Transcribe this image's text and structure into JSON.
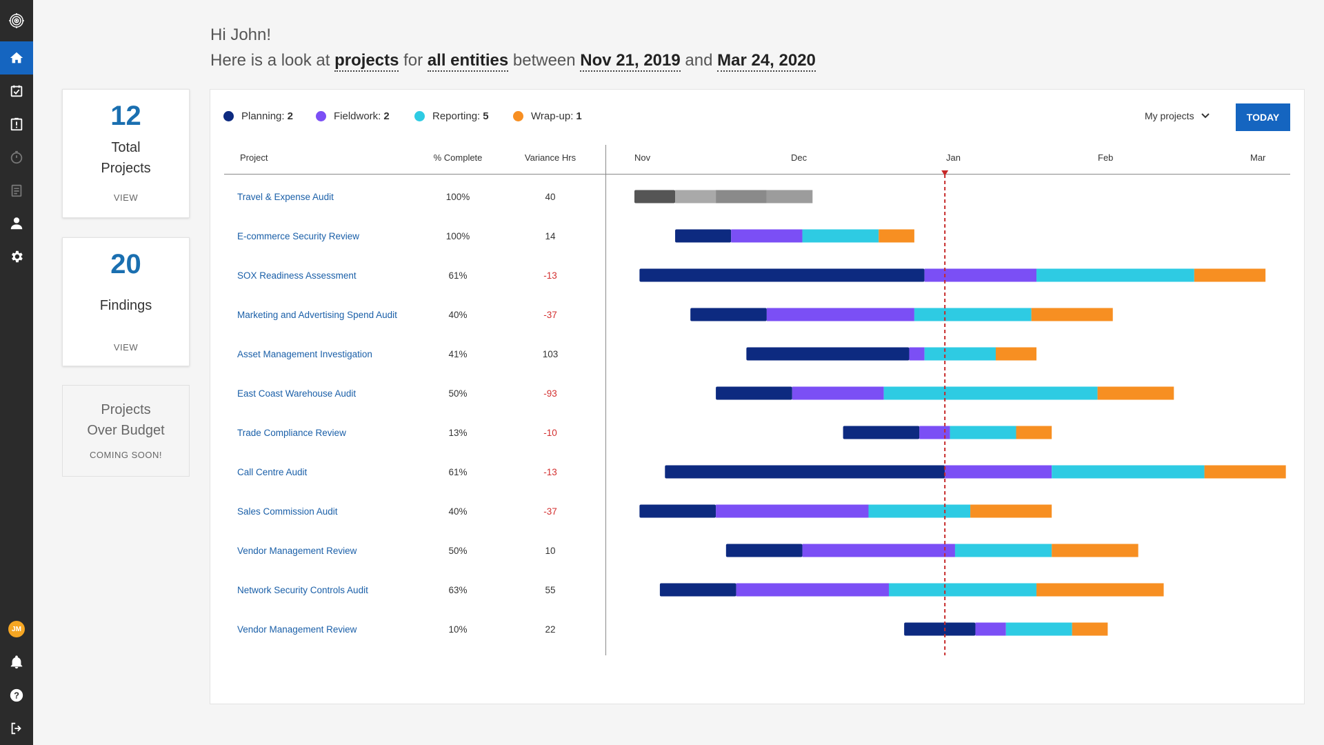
{
  "greeting": {
    "hello": "Hi John!",
    "line_prefix": "Here is a look at",
    "subject": "projects",
    "for_word": "for",
    "entities": "all entities",
    "between_word": "between",
    "start_date": "Nov 21, 2019",
    "and_word": "and",
    "end_date": "Mar 24, 2020"
  },
  "sidebar": {
    "avatar_initials": "JM",
    "icons": [
      "target-logo-icon",
      "home-icon",
      "checkbox-icon",
      "alert-clipboard-icon",
      "stopwatch-icon",
      "document-icon",
      "user-icon",
      "gear-icon",
      "bell-icon",
      "help-icon",
      "logout-icon"
    ]
  },
  "cards": {
    "total": {
      "count": "12",
      "label_line1": "Total",
      "label_line2": "Projects",
      "view": "VIEW"
    },
    "findings": {
      "count": "20",
      "label": "Findings",
      "view": "VIEW"
    },
    "budget": {
      "label_line1": "Projects",
      "label_line2": "Over Budget",
      "status": "COMING SOON!"
    }
  },
  "legend": [
    {
      "label": "Planning:",
      "count": "2",
      "color": "#0d2a80"
    },
    {
      "label": "Fieldwork:",
      "count": "2",
      "color": "#7b4ff5"
    },
    {
      "label": "Reporting:",
      "count": "5",
      "color": "#2ecbe3"
    },
    {
      "label": "Wrap-up:",
      "count": "1",
      "color": "#f78f22"
    }
  ],
  "filter": {
    "selected": "My projects"
  },
  "today_button": "TODAY",
  "columns": {
    "project": "Project",
    "complete": "% Complete",
    "variance": "Variance Hrs"
  },
  "months": [
    "Nov",
    "Dec",
    "Jan",
    "Feb",
    "Mar"
  ],
  "rows": [
    {
      "name": "Travel & Expense Audit",
      "complete": "100%",
      "variance": "40",
      "negative": false
    },
    {
      "name": "E-commerce Security Review",
      "complete": "100%",
      "variance": "14",
      "negative": false
    },
    {
      "name": "SOX Readiness Assessment",
      "complete": "61%",
      "variance": "-13",
      "negative": true
    },
    {
      "name": "Marketing and Advertising Spend Audit",
      "complete": "40%",
      "variance": "-37",
      "negative": true
    },
    {
      "name": "Asset Management Investigation",
      "complete": "41%",
      "variance": "103",
      "negative": false
    },
    {
      "name": "East Coast Warehouse Audit",
      "complete": "50%",
      "variance": "-93",
      "negative": true
    },
    {
      "name": "Trade Compliance Review",
      "complete": "13%",
      "variance": "-10",
      "negative": true
    },
    {
      "name": "Call Centre Audit",
      "complete": "61%",
      "variance": "-13",
      "negative": true
    },
    {
      "name": "Sales Commission Audit",
      "complete": "40%",
      "variance": "-37",
      "negative": true
    },
    {
      "name": "Vendor Management Review",
      "complete": "50%",
      "variance": "10",
      "negative": false
    },
    {
      "name": "Network Security Controls Audit",
      "complete": "63%",
      "variance": "55",
      "negative": false
    },
    {
      "name": "Vendor Management Review",
      "complete": "10%",
      "variance": "22",
      "negative": false
    }
  ],
  "chart_data": {
    "type": "gantt",
    "x_axis": "date",
    "xlim": [
      "2019-11-01",
      "2020-03-01"
    ],
    "today": "2020-01-01",
    "phases": [
      "Planning",
      "Fieldwork",
      "Reporting",
      "Wrap-up"
    ],
    "completed_colors": [
      "#555555",
      "#a9a9a9",
      "#8a8a8a",
      "#9c9c9c"
    ],
    "tasks": [
      {
        "project": "Travel & Expense Audit",
        "completed": true,
        "phase_ends": [
          "2019-11-01",
          "2019-11-09",
          "2019-11-17",
          "2019-11-27",
          "2019-12-06"
        ]
      },
      {
        "project": "E-commerce Security Review",
        "phase_ends": [
          "2019-11-09",
          "2019-11-20",
          "2019-12-04",
          "2019-12-19",
          "2019-12-26"
        ]
      },
      {
        "project": "SOX Readiness Assessment",
        "phase_ends": [
          "2019-11-02",
          "2019-12-28",
          "2020-01-19",
          "2020-02-19",
          "2020-03-04"
        ]
      },
      {
        "project": "Marketing and Advertising Spend Audit",
        "phase_ends": [
          "2019-11-12",
          "2019-11-27",
          "2019-12-26",
          "2020-01-18",
          "2020-02-03"
        ]
      },
      {
        "project": "Asset Management Investigation",
        "phase_ends": [
          "2019-11-23",
          "2019-12-25",
          "2019-12-28",
          "2020-01-11",
          "2020-01-19"
        ]
      },
      {
        "project": "East Coast Warehouse Audit",
        "phase_ends": [
          "2019-11-17",
          "2019-12-02",
          "2019-12-20",
          "2020-01-31",
          "2020-02-15"
        ]
      },
      {
        "project": "Trade Compliance Review",
        "phase_ends": [
          "2019-12-12",
          "2019-12-27",
          "2020-01-02",
          "2020-01-15",
          "2020-01-22"
        ]
      },
      {
        "project": "Call Centre Audit",
        "phase_ends": [
          "2019-11-07",
          "2020-01-01",
          "2020-01-22",
          "2020-02-21",
          "2020-03-08"
        ]
      },
      {
        "project": "Sales Commission Audit",
        "phase_ends": [
          "2019-11-02",
          "2019-11-17",
          "2019-12-17",
          "2020-01-06",
          "2020-01-22"
        ]
      },
      {
        "project": "Vendor Management Review",
        "phase_ends": [
          "2019-11-19",
          "2019-12-04",
          "2020-01-03",
          "2020-01-22",
          "2020-02-08"
        ]
      },
      {
        "project": "Network Security Controls Audit",
        "phase_ends": [
          "2019-11-06",
          "2019-11-21",
          "2019-12-21",
          "2020-01-19",
          "2020-02-13"
        ]
      },
      {
        "project": "Vendor Management Review",
        "phase_ends": [
          "2019-12-24",
          "2020-01-07",
          "2020-01-13",
          "2020-01-26",
          "2020-02-02"
        ]
      }
    ]
  }
}
